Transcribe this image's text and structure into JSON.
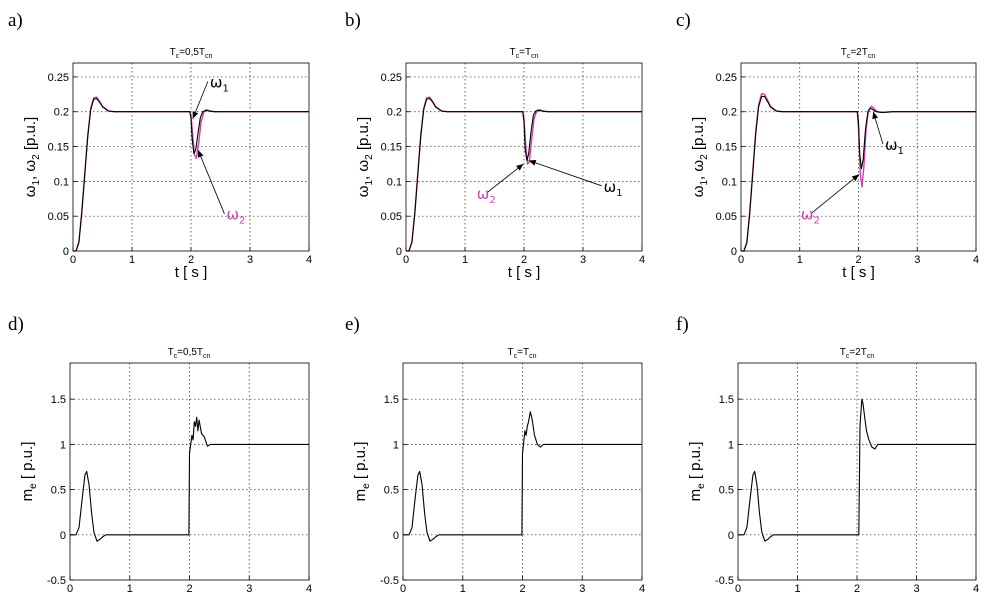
{
  "figure": {
    "colors": {
      "omega1": "#000000",
      "omega2": "#cc44aa",
      "me": "#000000",
      "axis": "#000000"
    }
  },
  "chart_data": [
    {
      "panel": "a)",
      "type": "line",
      "title": {
        "base": "T",
        "sub1": "c",
        "mid": "=0,5T",
        "sub2": "cn"
      },
      "xlabel": "t [ s ]",
      "ylabel": {
        "p1": "ω",
        "s1": "1",
        "p2": ", ω",
        "s2": "2",
        "p3": " [p.u.]"
      },
      "xlim": [
        0,
        4
      ],
      "ylim": [
        0,
        0.27
      ],
      "xticks": [
        0,
        1,
        2,
        3,
        4
      ],
      "yticks": [
        0,
        0.05,
        0.1,
        0.15,
        0.2,
        0.25
      ],
      "xtick_labels": [
        "0",
        "1",
        "2",
        "3",
        "4"
      ],
      "ytick_labels": [
        "0",
        "0.05",
        "0.1",
        "0.15",
        "0.2",
        "0.25"
      ],
      "grid": true,
      "series": [
        {
          "name": "ω1",
          "color": "#000000",
          "x": [
            0,
            0.05,
            0.1,
            0.15,
            0.2,
            0.25,
            0.3,
            0.35,
            0.4,
            0.45,
            0.5,
            0.6,
            0.7,
            0.8,
            1.0,
            1.5,
            1.98,
            2.0,
            2.02,
            2.05,
            2.08,
            2.12,
            2.16,
            2.2,
            2.25,
            2.3,
            2.4,
            2.6,
            3.0,
            4.0
          ],
          "y": [
            0,
            0,
            0.012,
            0.055,
            0.11,
            0.165,
            0.203,
            0.218,
            0.219,
            0.214,
            0.207,
            0.201,
            0.2,
            0.2,
            0.2,
            0.2,
            0.2,
            0.19,
            0.16,
            0.14,
            0.145,
            0.17,
            0.192,
            0.2,
            0.202,
            0.201,
            0.2,
            0.2,
            0.2,
            0.2
          ]
        },
        {
          "name": "ω2",
          "color": "#cc44aa",
          "x": [
            0,
            0.05,
            0.1,
            0.15,
            0.2,
            0.25,
            0.3,
            0.35,
            0.4,
            0.45,
            0.5,
            0.6,
            0.7,
            0.8,
            1.0,
            1.5,
            1.98,
            2.0,
            2.03,
            2.06,
            2.09,
            2.13,
            2.17,
            2.22,
            2.27,
            2.32,
            2.4,
            2.6,
            3.0,
            4.0
          ],
          "y": [
            0,
            0,
            0.013,
            0.057,
            0.112,
            0.167,
            0.205,
            0.22,
            0.221,
            0.215,
            0.208,
            0.201,
            0.2,
            0.2,
            0.2,
            0.2,
            0.2,
            0.195,
            0.165,
            0.138,
            0.133,
            0.155,
            0.185,
            0.2,
            0.203,
            0.201,
            0.2,
            0.2,
            0.2,
            0.2
          ]
        }
      ],
      "annotations": [
        {
          "text": "ω",
          "sub": "1",
          "color": "#000000",
          "at": [
            2.32,
            0.235
          ],
          "arrow_to": [
            2.03,
            0.19
          ]
        },
        {
          "text": "ω",
          "sub": "2",
          "color": "#cc44aa",
          "at": [
            2.6,
            0.045
          ],
          "arrow_to": [
            2.12,
            0.145
          ]
        }
      ]
    },
    {
      "panel": "b)",
      "type": "line",
      "title": {
        "base": "T",
        "sub1": "c",
        "mid": "=T",
        "sub2": "cn"
      },
      "xlabel": "t [ s ]",
      "ylabel": {
        "p1": "ω",
        "s1": "1",
        "p2": ", ω",
        "s2": "2",
        "p3": " [p.u.]"
      },
      "xlim": [
        0,
        4
      ],
      "ylim": [
        0,
        0.27
      ],
      "xticks": [
        0,
        1,
        2,
        3,
        4
      ],
      "yticks": [
        0,
        0.05,
        0.1,
        0.15,
        0.2,
        0.25
      ],
      "xtick_labels": [
        "0",
        "1",
        "2",
        "3",
        "4"
      ],
      "ytick_labels": [
        "0",
        "0.05",
        "0.1",
        "0.15",
        "0.2",
        "0.25"
      ],
      "grid": true,
      "series": [
        {
          "name": "ω1",
          "color": "#000000",
          "x": [
            0,
            0.05,
            0.1,
            0.15,
            0.2,
            0.25,
            0.3,
            0.35,
            0.4,
            0.45,
            0.5,
            0.6,
            0.7,
            0.8,
            1.0,
            1.5,
            1.98,
            2.0,
            2.02,
            2.05,
            2.08,
            2.12,
            2.16,
            2.2,
            2.25,
            2.3,
            2.4,
            2.6,
            3.0,
            4.0
          ],
          "y": [
            0,
            0,
            0.012,
            0.055,
            0.11,
            0.165,
            0.203,
            0.218,
            0.219,
            0.214,
            0.207,
            0.201,
            0.2,
            0.2,
            0.2,
            0.2,
            0.2,
            0.185,
            0.145,
            0.13,
            0.14,
            0.172,
            0.195,
            0.201,
            0.202,
            0.201,
            0.2,
            0.2,
            0.2,
            0.2
          ]
        },
        {
          "name": "ω2",
          "color": "#cc44aa",
          "x": [
            0,
            0.05,
            0.1,
            0.15,
            0.2,
            0.25,
            0.3,
            0.35,
            0.4,
            0.45,
            0.5,
            0.6,
            0.7,
            0.8,
            1.0,
            1.5,
            1.98,
            2.0,
            2.03,
            2.06,
            2.09,
            2.13,
            2.17,
            2.22,
            2.27,
            2.32,
            2.4,
            2.6,
            3.0,
            4.0
          ],
          "y": [
            0,
            0,
            0.013,
            0.057,
            0.112,
            0.167,
            0.205,
            0.22,
            0.221,
            0.215,
            0.208,
            0.201,
            0.2,
            0.2,
            0.2,
            0.2,
            0.2,
            0.19,
            0.15,
            0.125,
            0.128,
            0.16,
            0.19,
            0.202,
            0.203,
            0.201,
            0.2,
            0.2,
            0.2,
            0.2
          ]
        }
      ],
      "annotations": [
        {
          "text": "ω",
          "sub": "2",
          "color": "#cc44aa",
          "at": [
            1.2,
            0.075
          ],
          "arrow_to": [
            1.99,
            0.125
          ]
        },
        {
          "text": "ω",
          "sub": "1",
          "color": "#000000",
          "at": [
            3.35,
            0.085
          ],
          "arrow_to": [
            2.08,
            0.13
          ]
        }
      ]
    },
    {
      "panel": "c)",
      "type": "line",
      "title": {
        "base": "T",
        "sub1": "c",
        "mid": "=2T",
        "sub2": "cn"
      },
      "xlabel": "t [ s ]",
      "ylabel": {
        "p1": "ω",
        "s1": "1",
        "p2": ", ω",
        "s2": "2",
        "p3": " [p.u.]"
      },
      "xlim": [
        0,
        4
      ],
      "ylim": [
        0,
        0.27
      ],
      "xticks": [
        0,
        1,
        2,
        3,
        4
      ],
      "yticks": [
        0,
        0.05,
        0.1,
        0.15,
        0.2,
        0.25
      ],
      "xtick_labels": [
        "0",
        "1",
        "2",
        "3",
        "4"
      ],
      "ytick_labels": [
        "0",
        "0.05",
        "0.1",
        "0.15",
        "0.2",
        "0.25"
      ],
      "grid": true,
      "series": [
        {
          "name": "ω1",
          "color": "#000000",
          "x": [
            0,
            0.05,
            0.1,
            0.15,
            0.2,
            0.25,
            0.3,
            0.35,
            0.4,
            0.45,
            0.5,
            0.6,
            0.7,
            0.8,
            1.0,
            1.5,
            1.98,
            2.0,
            2.02,
            2.05,
            2.08,
            2.12,
            2.16,
            2.2,
            2.25,
            2.3,
            2.4,
            2.6,
            3.0,
            4.0
          ],
          "y": [
            0,
            0,
            0.012,
            0.055,
            0.112,
            0.168,
            0.207,
            0.222,
            0.222,
            0.215,
            0.207,
            0.201,
            0.2,
            0.2,
            0.2,
            0.2,
            0.2,
            0.185,
            0.14,
            0.118,
            0.132,
            0.175,
            0.2,
            0.205,
            0.203,
            0.2,
            0.199,
            0.2,
            0.2,
            0.2
          ]
        },
        {
          "name": "ω2",
          "color": "#cc44aa",
          "x": [
            0,
            0.05,
            0.1,
            0.15,
            0.2,
            0.25,
            0.3,
            0.35,
            0.4,
            0.45,
            0.5,
            0.6,
            0.7,
            0.8,
            1.0,
            1.5,
            1.98,
            2.0,
            2.03,
            2.06,
            2.09,
            2.13,
            2.17,
            2.22,
            2.27,
            2.32,
            2.4,
            2.6,
            3.0,
            4.0
          ],
          "y": [
            0,
            0,
            0.013,
            0.058,
            0.115,
            0.171,
            0.21,
            0.226,
            0.225,
            0.217,
            0.208,
            0.201,
            0.2,
            0.2,
            0.2,
            0.2,
            0.2,
            0.175,
            0.11,
            0.092,
            0.12,
            0.175,
            0.202,
            0.208,
            0.204,
            0.2,
            0.199,
            0.2,
            0.2,
            0.2
          ]
        }
      ],
      "annotations": [
        {
          "text": "ω",
          "sub": "2",
          "color": "#cc44aa",
          "at": [
            1.02,
            0.045
          ],
          "arrow_to": [
            2.01,
            0.11
          ]
        },
        {
          "text": "ω",
          "sub": "1",
          "color": "#000000",
          "at": [
            2.45,
            0.145
          ],
          "arrow_to": [
            2.25,
            0.2
          ]
        }
      ]
    },
    {
      "panel": "d)",
      "type": "line",
      "title": {
        "base": "T",
        "sub1": "c",
        "mid": "=0,5T",
        "sub2": "cn"
      },
      "xlabel": "t [ s ]",
      "ylabel": {
        "p1": "m",
        "s1": "e",
        "p2": " [ p.u.]",
        "s2": "",
        "p3": ""
      },
      "xlim": [
        0,
        4
      ],
      "ylim": [
        -0.5,
        1.9
      ],
      "xticks": [
        0,
        1,
        2,
        3,
        4
      ],
      "yticks": [
        -0.5,
        0,
        0.5,
        1,
        1.5
      ],
      "xtick_labels": [
        "0",
        "1",
        "2",
        "3",
        "4"
      ],
      "ytick_labels": [
        "-0.5",
        "0",
        "0.5",
        "1",
        "1.5"
      ],
      "grid": true,
      "series": [
        {
          "name": "",
          "color": "#000000",
          "x": [
            0,
            0.1,
            0.15,
            0.2,
            0.25,
            0.28,
            0.32,
            0.36,
            0.4,
            0.45,
            0.5,
            0.55,
            0.6,
            0.7,
            0.8,
            1.0,
            1.5,
            1.99,
            2.0,
            2.04,
            2.06,
            2.08,
            2.1,
            2.12,
            2.14,
            2.16,
            2.2,
            2.25,
            2.3,
            2.35,
            2.4,
            2.5,
            3.0,
            4.0
          ],
          "y": [
            0,
            0,
            0.08,
            0.38,
            0.66,
            0.7,
            0.55,
            0.25,
            0.03,
            -0.07,
            -0.05,
            -0.02,
            0,
            0,
            0,
            0,
            0,
            0,
            0.9,
            1.1,
            1.05,
            1.25,
            1.2,
            1.3,
            1.15,
            1.27,
            1.12,
            1.08,
            0.98,
            1.0,
            1.0,
            1.0,
            1.0,
            1.0
          ]
        }
      ],
      "annotations": []
    },
    {
      "panel": "e)",
      "type": "line",
      "title": {
        "base": "T",
        "sub1": "c",
        "mid": "=T",
        "sub2": "cn"
      },
      "xlabel": "t [ s ]",
      "ylabel": {
        "p1": "m",
        "s1": "e",
        "p2": " [ p.u.]",
        "s2": "",
        "p3": ""
      },
      "xlim": [
        0,
        4
      ],
      "ylim": [
        -0.5,
        1.9
      ],
      "xticks": [
        0,
        1,
        2,
        3,
        4
      ],
      "yticks": [
        -0.5,
        0,
        0.5,
        1,
        1.5
      ],
      "xtick_labels": [
        "0",
        "1",
        "2",
        "3",
        "4"
      ],
      "ytick_labels": [
        "-0.5",
        "0",
        "0.5",
        "1",
        "1.5"
      ],
      "grid": true,
      "series": [
        {
          "name": "",
          "color": "#000000",
          "x": [
            0,
            0.1,
            0.15,
            0.2,
            0.25,
            0.28,
            0.32,
            0.36,
            0.4,
            0.45,
            0.5,
            0.55,
            0.6,
            0.7,
            0.8,
            1.0,
            1.5,
            1.99,
            2.0,
            2.04,
            2.06,
            2.08,
            2.1,
            2.13,
            2.16,
            2.2,
            2.25,
            2.3,
            2.35,
            2.4,
            2.5,
            3.0,
            4.0
          ],
          "y": [
            0,
            0,
            0.08,
            0.38,
            0.66,
            0.7,
            0.55,
            0.25,
            0.03,
            -0.07,
            -0.05,
            -0.02,
            0,
            0,
            0,
            0,
            0,
            0,
            0.9,
            1.15,
            1.1,
            1.2,
            1.25,
            1.36,
            1.28,
            1.1,
            1.0,
            0.97,
            1.0,
            1.0,
            1.0,
            1.0,
            1.0
          ]
        }
      ],
      "annotations": []
    },
    {
      "panel": "f)",
      "type": "line",
      "title": {
        "base": "T",
        "sub1": "c",
        "mid": "=2T",
        "sub2": "cn"
      },
      "xlabel": "t [ s ]",
      "ylabel": {
        "p1": "m",
        "s1": "e",
        "p2": " [ p.u.]",
        "s2": "",
        "p3": ""
      },
      "xlim": [
        0,
        4
      ],
      "ylim": [
        -0.5,
        1.9
      ],
      "xticks": [
        0,
        1,
        2,
        3,
        4
      ],
      "yticks": [
        -0.5,
        0,
        0.5,
        1,
        1.5
      ],
      "xtick_labels": [
        "0",
        "1",
        "2",
        "3",
        "4"
      ],
      "ytick_labels": [
        "-0.5",
        "0",
        "0.5",
        "1",
        "1.5"
      ],
      "grid": true,
      "series": [
        {
          "name": "",
          "color": "#000000",
          "x": [
            0,
            0.1,
            0.15,
            0.2,
            0.25,
            0.28,
            0.32,
            0.36,
            0.4,
            0.45,
            0.5,
            0.55,
            0.6,
            0.7,
            0.8,
            1.0,
            1.5,
            2.03,
            2.05,
            2.08,
            2.1,
            2.13,
            2.16,
            2.2,
            2.25,
            2.3,
            2.35,
            2.4,
            2.5,
            3.0,
            4.0
          ],
          "y": [
            0,
            0,
            0.08,
            0.38,
            0.66,
            0.7,
            0.55,
            0.25,
            0.03,
            -0.07,
            -0.05,
            -0.02,
            0,
            0,
            0,
            0,
            0,
            0,
            1.2,
            1.5,
            1.45,
            1.3,
            1.15,
            1.05,
            0.97,
            0.95,
            1.0,
            1.0,
            1.0,
            1.0,
            1.0
          ]
        }
      ],
      "annotations": []
    }
  ]
}
